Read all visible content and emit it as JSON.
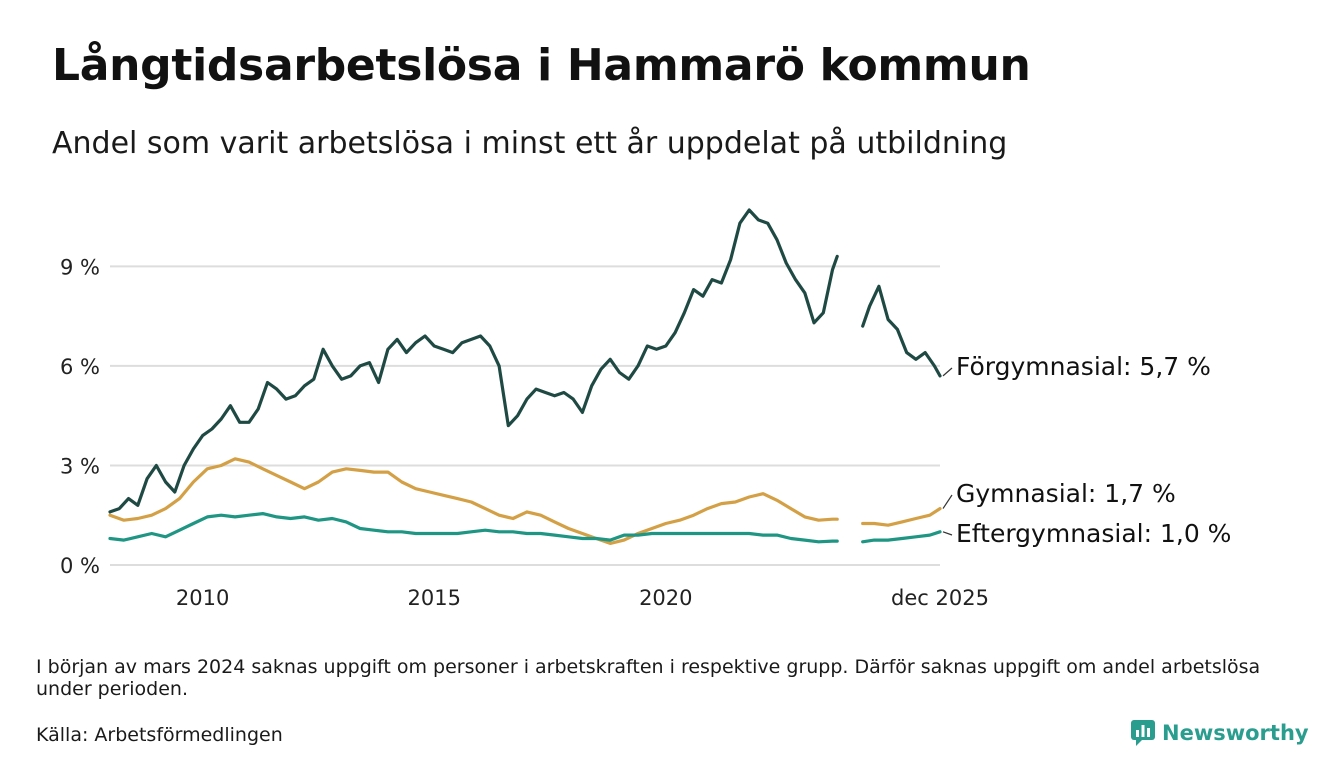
{
  "title": "Långtidsarbetslösa i Hammarö kommun",
  "subtitle": "Andel som varit arbetslösa i minst ett år uppdelat på utbildning",
  "note": "I början av mars 2024 saknas uppgift om personer i arbetskraften i respektive grupp. Därför saknas uppgift om andel arbetslösa under perioden.",
  "source": "Källa: Arbetsförmedlingen",
  "brand": "Newsworthy",
  "colors": {
    "forgymnasial": "#1f4a44",
    "gymnasial": "#d4a046",
    "eftergymnasial": "#1f9683",
    "grid": "#dddddd",
    "brand": "#2a9d8f"
  },
  "chart_data": {
    "type": "line",
    "title": "Långtidsarbetslösa i Hammarö kommun",
    "xlabel": "",
    "ylabel": "",
    "ylim": [
      0,
      11
    ],
    "yticks": [
      0,
      3,
      6,
      9
    ],
    "ytick_labels": [
      "0 %",
      "3 %",
      "6 %",
      "9 %"
    ],
    "xlim": [
      2008.0,
      2025.92
    ],
    "xticks": [
      2010,
      2015,
      2020,
      2025.92
    ],
    "xtick_labels": [
      "2010",
      "2015",
      "2020",
      "dec 2025"
    ],
    "gap": [
      2024.1,
      2024.25
    ],
    "series": [
      {
        "name": "Förgymnasial",
        "end_label": "Förgymnasial: 5,7 %",
        "color": "#1f4a44",
        "points": [
          [
            2008.0,
            1.6
          ],
          [
            2008.2,
            1.7
          ],
          [
            2008.4,
            2.0
          ],
          [
            2008.6,
            1.8
          ],
          [
            2008.8,
            2.6
          ],
          [
            2009.0,
            3.0
          ],
          [
            2009.2,
            2.5
          ],
          [
            2009.4,
            2.2
          ],
          [
            2009.6,
            3.0
          ],
          [
            2009.8,
            3.5
          ],
          [
            2010.0,
            3.9
          ],
          [
            2010.2,
            4.1
          ],
          [
            2010.4,
            4.4
          ],
          [
            2010.6,
            4.8
          ],
          [
            2010.8,
            4.3
          ],
          [
            2011.0,
            4.3
          ],
          [
            2011.2,
            4.7
          ],
          [
            2011.4,
            5.5
          ],
          [
            2011.6,
            5.3
          ],
          [
            2011.8,
            5.0
          ],
          [
            2012.0,
            5.1
          ],
          [
            2012.2,
            5.4
          ],
          [
            2012.4,
            5.6
          ],
          [
            2012.6,
            6.5
          ],
          [
            2012.8,
            6.0
          ],
          [
            2013.0,
            5.6
          ],
          [
            2013.2,
            5.7
          ],
          [
            2013.4,
            6.0
          ],
          [
            2013.6,
            6.1
          ],
          [
            2013.8,
            5.5
          ],
          [
            2014.0,
            6.5
          ],
          [
            2014.2,
            6.8
          ],
          [
            2014.4,
            6.4
          ],
          [
            2014.6,
            6.7
          ],
          [
            2014.8,
            6.9
          ],
          [
            2015.0,
            6.6
          ],
          [
            2015.2,
            6.5
          ],
          [
            2015.4,
            6.4
          ],
          [
            2015.6,
            6.7
          ],
          [
            2015.8,
            6.8
          ],
          [
            2016.0,
            6.9
          ],
          [
            2016.2,
            6.6
          ],
          [
            2016.4,
            6.0
          ],
          [
            2016.6,
            4.2
          ],
          [
            2016.8,
            4.5
          ],
          [
            2017.0,
            5.0
          ],
          [
            2017.2,
            5.3
          ],
          [
            2017.4,
            5.2
          ],
          [
            2017.6,
            5.1
          ],
          [
            2017.8,
            5.2
          ],
          [
            2018.0,
            5.0
          ],
          [
            2018.2,
            4.6
          ],
          [
            2018.4,
            5.4
          ],
          [
            2018.6,
            5.9
          ],
          [
            2018.8,
            6.2
          ],
          [
            2019.0,
            5.8
          ],
          [
            2019.2,
            5.6
          ],
          [
            2019.4,
            6.0
          ],
          [
            2019.6,
            6.6
          ],
          [
            2019.8,
            6.5
          ],
          [
            2020.0,
            6.6
          ],
          [
            2020.2,
            7.0
          ],
          [
            2020.4,
            7.6
          ],
          [
            2020.6,
            8.3
          ],
          [
            2020.8,
            8.1
          ],
          [
            2021.0,
            8.6
          ],
          [
            2021.2,
            8.5
          ],
          [
            2021.4,
            9.2
          ],
          [
            2021.6,
            10.3
          ],
          [
            2021.8,
            10.7
          ],
          [
            2022.0,
            10.4
          ],
          [
            2022.2,
            10.3
          ],
          [
            2022.4,
            9.8
          ],
          [
            2022.6,
            9.1
          ],
          [
            2022.8,
            8.6
          ],
          [
            2023.0,
            8.2
          ],
          [
            2023.2,
            7.3
          ],
          [
            2023.4,
            7.6
          ],
          [
            2023.6,
            8.9
          ],
          [
            2023.7,
            9.3
          ],
          [
            2024.25,
            7.2
          ],
          [
            2024.4,
            7.8
          ],
          [
            2024.6,
            8.4
          ],
          [
            2024.8,
            7.4
          ],
          [
            2025.0,
            7.1
          ],
          [
            2025.2,
            6.4
          ],
          [
            2025.4,
            6.2
          ],
          [
            2025.6,
            6.4
          ],
          [
            2025.8,
            6.0
          ],
          [
            2025.92,
            5.7
          ]
        ]
      },
      {
        "name": "Gymnasial",
        "end_label": "Gymnasial: 1,7 %",
        "color": "#d4a046",
        "points": [
          [
            2008.0,
            1.5
          ],
          [
            2008.3,
            1.35
          ],
          [
            2008.6,
            1.4
          ],
          [
            2008.9,
            1.5
          ],
          [
            2009.2,
            1.7
          ],
          [
            2009.5,
            2.0
          ],
          [
            2009.8,
            2.5
          ],
          [
            2010.1,
            2.9
          ],
          [
            2010.4,
            3.0
          ],
          [
            2010.7,
            3.2
          ],
          [
            2011.0,
            3.1
          ],
          [
            2011.3,
            2.9
          ],
          [
            2011.6,
            2.7
          ],
          [
            2011.9,
            2.5
          ],
          [
            2012.2,
            2.3
          ],
          [
            2012.5,
            2.5
          ],
          [
            2012.8,
            2.8
          ],
          [
            2013.1,
            2.9
          ],
          [
            2013.4,
            2.85
          ],
          [
            2013.7,
            2.8
          ],
          [
            2014.0,
            2.8
          ],
          [
            2014.3,
            2.5
          ],
          [
            2014.6,
            2.3
          ],
          [
            2014.9,
            2.2
          ],
          [
            2015.2,
            2.1
          ],
          [
            2015.5,
            2.0
          ],
          [
            2015.8,
            1.9
          ],
          [
            2016.1,
            1.7
          ],
          [
            2016.4,
            1.5
          ],
          [
            2016.7,
            1.4
          ],
          [
            2017.0,
            1.6
          ],
          [
            2017.3,
            1.5
          ],
          [
            2017.6,
            1.3
          ],
          [
            2017.9,
            1.1
          ],
          [
            2018.2,
            0.95
          ],
          [
            2018.5,
            0.8
          ],
          [
            2018.8,
            0.65
          ],
          [
            2019.1,
            0.75
          ],
          [
            2019.4,
            0.95
          ],
          [
            2019.7,
            1.1
          ],
          [
            2020.0,
            1.25
          ],
          [
            2020.3,
            1.35
          ],
          [
            2020.6,
            1.5
          ],
          [
            2020.9,
            1.7
          ],
          [
            2021.2,
            1.85
          ],
          [
            2021.5,
            1.9
          ],
          [
            2021.8,
            2.05
          ],
          [
            2022.1,
            2.15
          ],
          [
            2022.4,
            1.95
          ],
          [
            2022.7,
            1.7
          ],
          [
            2023.0,
            1.45
          ],
          [
            2023.3,
            1.35
          ],
          [
            2023.6,
            1.38
          ],
          [
            2023.7,
            1.38
          ],
          [
            2024.25,
            1.25
          ],
          [
            2024.5,
            1.25
          ],
          [
            2024.8,
            1.2
          ],
          [
            2025.1,
            1.3
          ],
          [
            2025.4,
            1.4
          ],
          [
            2025.7,
            1.5
          ],
          [
            2025.92,
            1.7
          ]
        ]
      },
      {
        "name": "Eftergymnasial",
        "end_label": "Eftergymnasial: 1,0 %",
        "color": "#1f9683",
        "points": [
          [
            2008.0,
            0.8
          ],
          [
            2008.3,
            0.75
          ],
          [
            2008.6,
            0.85
          ],
          [
            2008.9,
            0.95
          ],
          [
            2009.2,
            0.85
          ],
          [
            2009.5,
            1.05
          ],
          [
            2009.8,
            1.25
          ],
          [
            2010.1,
            1.45
          ],
          [
            2010.4,
            1.5
          ],
          [
            2010.7,
            1.45
          ],
          [
            2011.0,
            1.5
          ],
          [
            2011.3,
            1.55
          ],
          [
            2011.6,
            1.45
          ],
          [
            2011.9,
            1.4
          ],
          [
            2012.2,
            1.45
          ],
          [
            2012.5,
            1.35
          ],
          [
            2012.8,
            1.4
          ],
          [
            2013.1,
            1.3
          ],
          [
            2013.4,
            1.1
          ],
          [
            2013.7,
            1.05
          ],
          [
            2014.0,
            1.0
          ],
          [
            2014.3,
            1.0
          ],
          [
            2014.6,
            0.95
          ],
          [
            2014.9,
            0.95
          ],
          [
            2015.2,
            0.95
          ],
          [
            2015.5,
            0.95
          ],
          [
            2015.8,
            1.0
          ],
          [
            2016.1,
            1.05
          ],
          [
            2016.4,
            1.0
          ],
          [
            2016.7,
            1.0
          ],
          [
            2017.0,
            0.95
          ],
          [
            2017.3,
            0.95
          ],
          [
            2017.6,
            0.9
          ],
          [
            2017.9,
            0.85
          ],
          [
            2018.2,
            0.8
          ],
          [
            2018.5,
            0.8
          ],
          [
            2018.8,
            0.75
          ],
          [
            2019.1,
            0.9
          ],
          [
            2019.4,
            0.9
          ],
          [
            2019.7,
            0.95
          ],
          [
            2020.0,
            0.95
          ],
          [
            2020.3,
            0.95
          ],
          [
            2020.6,
            0.95
          ],
          [
            2020.9,
            0.95
          ],
          [
            2021.2,
            0.95
          ],
          [
            2021.5,
            0.95
          ],
          [
            2021.8,
            0.95
          ],
          [
            2022.1,
            0.9
          ],
          [
            2022.4,
            0.9
          ],
          [
            2022.7,
            0.8
          ],
          [
            2023.0,
            0.75
          ],
          [
            2023.3,
            0.7
          ],
          [
            2023.6,
            0.72
          ],
          [
            2023.7,
            0.72
          ],
          [
            2024.25,
            0.7
          ],
          [
            2024.5,
            0.75
          ],
          [
            2024.8,
            0.75
          ],
          [
            2025.1,
            0.8
          ],
          [
            2025.4,
            0.85
          ],
          [
            2025.7,
            0.9
          ],
          [
            2025.92,
            1.0
          ]
        ]
      }
    ]
  }
}
